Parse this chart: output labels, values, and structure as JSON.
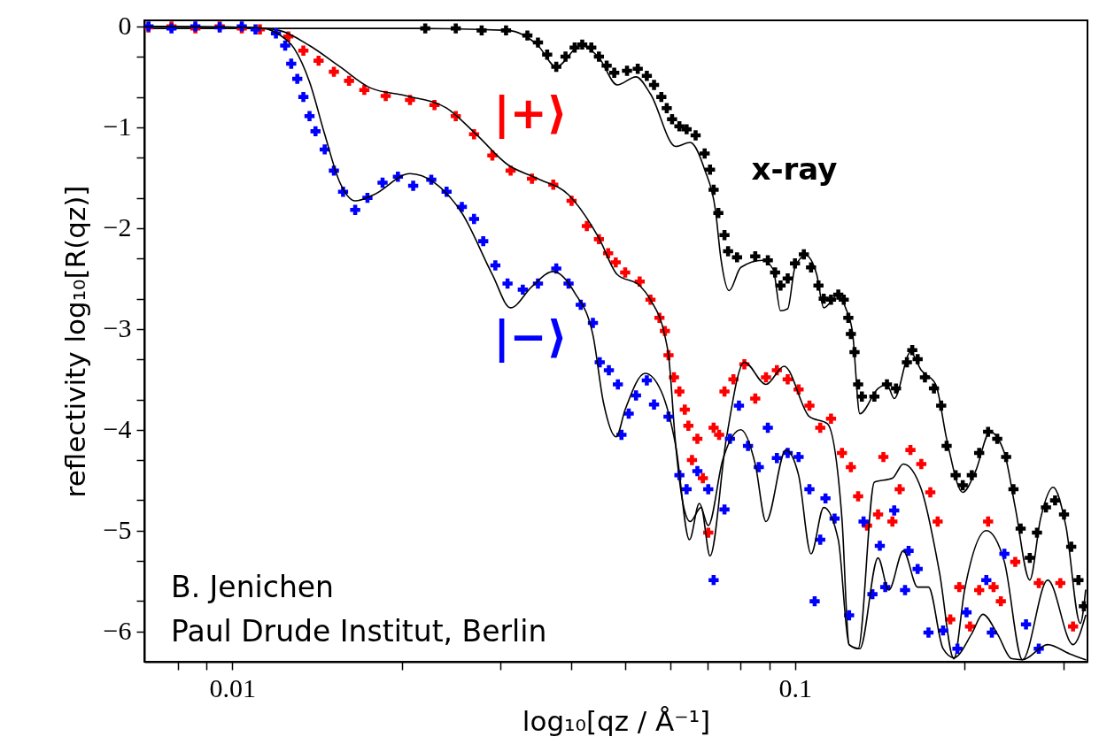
{
  "chart_data": {
    "type": "scatter",
    "xlabel": "log₁₀[qz / Å⁻¹]",
    "ylabel": "reflectivity log₁₀[R(qz)]",
    "log": "x",
    "xlim": [
      0.00698,
      0.331
    ],
    "ylim": [
      -6.3,
      0.06
    ],
    "xticks": [
      {
        "value": 0.008,
        "label": null
      },
      {
        "value": 0.009,
        "label": null
      },
      0.01,
      {
        "value": 0.02,
        "label": null
      },
      {
        "value": 0.03,
        "label": null
      },
      {
        "value": 0.04,
        "label": null
      },
      {
        "value": 0.05,
        "label": null
      },
      {
        "value": 0.06,
        "label": null
      },
      {
        "value": 0.07,
        "label": null
      },
      {
        "value": 0.08,
        "label": null
      },
      {
        "value": 0.09,
        "label": null
      },
      0.1,
      {
        "value": 0.2,
        "label": null
      },
      {
        "value": 0.3,
        "label": null
      }
    ],
    "yticks": [
      0,
      {
        "value": -0.301,
        "label": null
      },
      {
        "value": -0.699,
        "label": null
      },
      -1,
      {
        "value": -1.301,
        "label": null
      },
      {
        "value": -1.699,
        "label": null
      },
      -2,
      {
        "value": -2.301,
        "label": null
      },
      {
        "value": -2.699,
        "label": null
      },
      -3,
      {
        "value": -3.301,
        "label": null
      },
      {
        "value": -3.699,
        "label": null
      },
      -4,
      {
        "value": -4.301,
        "label": null
      },
      {
        "value": -4.699,
        "label": null
      },
      -5,
      {
        "value": -5.301,
        "label": null
      },
      {
        "value": -5.699,
        "label": null
      },
      -6
    ],
    "annotations": [
      "B. Jenichen",
      "Paul Drude Institut, Berlin"
    ],
    "series": [
      {
        "type": "line",
        "color": "#000000",
        "marker": "none",
        "line_style": "solid",
        "x": [
          0.00698,
          0.015,
          0.02123,
          0.03085,
          0.03494,
          0.03766,
          0.04162,
          0.04484,
          0.04832,
          0.05219,
          0.05537,
          0.0614,
          0.06513,
          0.06911,
          0.07222,
          0.07385,
          0.07639,
          0.08012,
          0.08753,
          0.0915,
          0.09426,
          0.09707,
          0.1,
          0.1045,
          0.1093,
          0.1125,
          0.1194,
          0.123,
          0.1266,
          0.1304,
          0.1405,
          0.1457,
          0.1501,
          0.1604,
          0.1677,
          0.1779,
          0.186,
          0.1987,
          0.2094,
          0.2221,
          0.2356,
          0.2463,
          0.2614,
          0.2732,
          0.2876,
          0.3029,
          0.3214,
          0.3285
        ],
        "values": [
          -0.02,
          -0.02,
          -0.02,
          -0.04,
          -0.19,
          -0.4,
          -0.19,
          -0.31,
          -0.58,
          -0.5,
          -0.67,
          -1.19,
          -1.15,
          -1.42,
          -1.82,
          -2.3,
          -2.62,
          -2.39,
          -2.32,
          -2.41,
          -2.82,
          -2.8,
          -2.39,
          -2.27,
          -2.46,
          -2.79,
          -2.66,
          -2.79,
          -3.04,
          -3.84,
          -3.59,
          -3.55,
          -3.69,
          -3.23,
          -3.41,
          -3.55,
          -4.09,
          -4.62,
          -4.41,
          -4.02,
          -4.23,
          -4.77,
          -5.49,
          -4.88,
          -4.57,
          -4.95,
          -5.92,
          -5.59
        ]
      },
      {
        "name": "x-ray",
        "color": "#000000",
        "marker": "cross",
        "x": [
          0.02203,
          0.02496,
          0.02775,
          0.03066,
          0.03346,
          0.03494,
          0.03628,
          0.03766,
          0.03911,
          0.0406,
          0.04188,
          0.04346,
          0.04484,
          0.04628,
          0.04774,
          0.0503,
          0.05256,
          0.05455,
          0.05618,
          0.05788,
          0.05918,
          0.06048,
          0.06232,
          0.06419,
          0.0666,
          0.06911,
          0.07064,
          0.07169,
          0.07309,
          0.07495,
          0.07606,
          0.0789,
          0.085,
          0.0895,
          0.09219,
          0.09426,
          0.09707,
          0.1,
          0.1037,
          0.1068,
          0.1101,
          0.1125,
          0.1159,
          0.1194,
          0.1221,
          0.1244,
          0.1257,
          0.1276,
          0.1295,
          0.1315,
          0.1384,
          0.1457,
          0.1512,
          0.1581,
          0.1616,
          0.1652,
          0.1702,
          0.1766,
          0.1819,
          0.186,
          0.193,
          0.1987,
          0.2062,
          0.2125,
          0.2204,
          0.2288,
          0.2373,
          0.2445,
          0.2518,
          0.2614,
          0.2692,
          0.2793,
          0.2899,
          0.3007,
          0.3097,
          0.319,
          0.3261
        ],
        "values": [
          -0.02,
          -0.02,
          -0.04,
          -0.04,
          -0.09,
          -0.16,
          -0.28,
          -0.4,
          -0.3,
          -0.21,
          -0.18,
          -0.21,
          -0.3,
          -0.39,
          -0.46,
          -0.44,
          -0.42,
          -0.49,
          -0.58,
          -0.7,
          -0.81,
          -0.92,
          -0.99,
          -1.02,
          -1.08,
          -1.26,
          -1.42,
          -1.62,
          -1.85,
          -2.07,
          -2.23,
          -2.29,
          -2.28,
          -2.32,
          -2.44,
          -2.57,
          -2.5,
          -2.35,
          -2.26,
          -2.39,
          -2.57,
          -2.7,
          -2.71,
          -2.66,
          -2.71,
          -2.89,
          -3.05,
          -3.23,
          -3.55,
          -3.67,
          -3.67,
          -3.55,
          -3.59,
          -3.33,
          -3.21,
          -3.3,
          -3.48,
          -3.59,
          -3.76,
          -4.16,
          -4.45,
          -4.55,
          -4.45,
          -4.23,
          -4.02,
          -4.09,
          -4.27,
          -4.59,
          -4.98,
          -5.27,
          -5.02,
          -4.77,
          -4.7,
          -4.84,
          -5.16,
          -5.49,
          -5.75
        ]
      },
      {
        "name": "|+⟩",
        "color": "#ff0000",
        "marker": "cross",
        "x": [
          0.0071,
          0.0078,
          0.0086,
          0.0095,
          0.0104,
          0.0112,
          0.01258,
          0.01338,
          0.01424,
          0.01516,
          0.01613,
          0.01717,
          0.01874,
          0.0207,
          0.02288,
          0.02496,
          0.0269,
          0.02899,
          0.03124,
          0.03409,
          0.0372,
          0.04009,
          0.04267,
          0.04484,
          0.04656,
          0.04803,
          0.04992,
          0.05297,
          0.05537,
          0.05744,
          0.05873,
          0.05961,
          0.06095,
          0.06232,
          0.06372,
          0.06466,
          0.06561,
          0.06708,
          0.0686,
          0.07013,
          0.07169,
          0.07332,
          0.07495,
          0.07774,
          0.0813,
          0.085,
          0.08883,
          0.09287,
          0.09707,
          0.1015,
          0.1061,
          0.1109,
          0.1159,
          0.1212,
          0.1257,
          0.1295,
          0.1343,
          0.1405,
          0.1436,
          0.149,
          0.1535,
          0.1604,
          0.1677,
          0.174,
          0.1793,
          0.1888,
          0.1959,
          0.2047,
          0.2125,
          0.2204,
          0.2254,
          0.2322,
          0.2463,
          0.2712,
          0.2962,
          0.312
        ],
        "values": [
          -0.01,
          0.0,
          -0.02,
          0.0,
          -0.02,
          -0.03,
          -0.1,
          -0.24,
          -0.34,
          -0.45,
          -0.54,
          -0.63,
          -0.69,
          -0.73,
          -0.78,
          -0.89,
          -1.07,
          -1.28,
          -1.43,
          -1.51,
          -1.57,
          -1.73,
          -1.98,
          -2.11,
          -2.25,
          -2.34,
          -2.44,
          -2.53,
          -2.71,
          -2.89,
          -3.02,
          -3.26,
          -3.48,
          -3.62,
          -3.8,
          -3.96,
          -4.3,
          -4.09,
          -4.48,
          -5.02,
          -3.98,
          -4.05,
          -3.62,
          -3.5,
          -3.35,
          -3.69,
          -3.48,
          -3.41,
          -3.5,
          -3.6,
          -3.76,
          -3.98,
          -3.89,
          -4.23,
          -4.37,
          -4.66,
          -4.95,
          -4.84,
          -4.27,
          -4.91,
          -4.59,
          -4.2,
          -4.34,
          -4.62,
          -4.91,
          -5.88,
          -5.56,
          -5.95,
          -5.59,
          -4.91,
          -5.56,
          -5.7,
          -5.31,
          -5.52,
          -5.52,
          -5.95
        ]
      },
      {
        "type": "line",
        "color": "#000000",
        "marker": "none",
        "line_style": "solid",
        "x": [
          0.00698,
          0.01069,
          0.01211,
          0.01372,
          0.01554,
          0.01761,
          0.02044,
          0.02404,
          0.02724,
          0.03085,
          0.03494,
          0.0396,
          0.04484,
          0.04832,
          0.05297,
          0.05537,
          0.05873,
          0.05961,
          0.0614,
          0.06324,
          0.06513,
          0.06809,
          0.07064,
          0.07551,
          0.0813,
          0.08883,
          0.09566,
          0.1061,
          0.1142,
          0.1212,
          0.1248,
          0.1295,
          0.1384,
          0.149,
          0.1558,
          0.1677,
          0.1806,
          0.1916,
          0.2002,
          0.2188,
          0.2356,
          0.2537,
          0.2813,
          0.312,
          0.3285
        ],
        "values": [
          0.0,
          -0.01,
          -0.04,
          -0.19,
          -0.4,
          -0.61,
          -0.69,
          -0.81,
          -1.08,
          -1.37,
          -1.51,
          -1.67,
          -2.1,
          -2.46,
          -2.57,
          -2.71,
          -3.07,
          -3.26,
          -4.16,
          -4.73,
          -4.91,
          -4.77,
          -5.25,
          -4.09,
          -3.33,
          -3.55,
          -3.37,
          -3.87,
          -3.94,
          -4.88,
          -6.13,
          -6.17,
          -4.52,
          -4.48,
          -4.34,
          -4.59,
          -5.41,
          -6.27,
          -5.59,
          -5.0,
          -5.31,
          -6.28,
          -5.49,
          -6.13,
          -5.84
        ]
      },
      {
        "name": "|−⟩",
        "color": "#0000ff",
        "marker": "cross",
        "x": [
          0.0071,
          0.0078,
          0.0086,
          0.0095,
          0.0104,
          0.011,
          0.01196,
          0.01242,
          0.01273,
          0.01305,
          0.01338,
          0.01372,
          0.01406,
          0.0146,
          0.01516,
          0.01574,
          0.01654,
          0.01739,
          0.0185,
          0.0197,
          0.02097,
          0.02258,
          0.02404,
          0.02559,
          0.0269,
          0.02793,
          0.02935,
          0.03085,
          0.03284,
          0.03494,
          0.03766,
          0.0396,
          0.04162,
          0.04375,
          0.04499,
          0.0467,
          0.04845,
          0.04917,
          0.05065,
          0.05219,
          0.05455,
          0.05618,
          0.05961,
          0.06232,
          0.06419,
          0.06708,
          0.07013,
          0.07169,
          0.07495,
          0.07664,
          0.07952,
          0.08252,
          0.08624,
          0.0895,
          0.09287,
          0.09707,
          0.1015,
          0.1061,
          0.1084,
          0.1109,
          0.1133,
          0.1176,
          0.1248,
          0.1324,
          0.1373,
          0.1415,
          0.1447,
          0.1501,
          0.1569,
          0.1592,
          0.1652,
          0.1727,
          0.1833,
          0.1944,
          0.2018,
          0.2188,
          0.2238,
          0.2356,
          0.2574,
          0.2712
        ],
        "values": [
          0.0,
          -0.02,
          0.0,
          -0.01,
          0.0,
          -0.03,
          -0.07,
          -0.19,
          -0.37,
          -0.52,
          -0.7,
          -0.89,
          -1.04,
          -1.22,
          -1.43,
          -1.64,
          -1.82,
          -1.7,
          -1.55,
          -1.49,
          -1.58,
          -1.52,
          -1.64,
          -1.79,
          -1.91,
          -2.13,
          -2.37,
          -2.55,
          -2.61,
          -2.55,
          -2.4,
          -2.55,
          -2.76,
          -2.94,
          -3.33,
          -3.41,
          -3.55,
          -4.05,
          -3.84,
          -3.66,
          -3.51,
          -3.75,
          -3.87,
          -4.45,
          -4.59,
          -4.41,
          -4.59,
          -5.49,
          -4.79,
          -4.09,
          -3.76,
          -4.16,
          -4.37,
          -3.98,
          -4.28,
          -4.23,
          -4.27,
          -4.59,
          -5.7,
          -5.09,
          -4.68,
          -4.88,
          -5.84,
          -4.91,
          -5.63,
          -5.15,
          -5.56,
          -4.8,
          -5.59,
          -5.2,
          -5.38,
          -6.01,
          -5.99,
          -6.17,
          -5.81,
          -5.49,
          -6.01,
          -5.23,
          -5.93,
          -6.17
        ]
      },
      {
        "type": "line",
        "color": "#000000",
        "marker": "none",
        "line_style": "solid",
        "x": [
          0.00698,
          0.01069,
          0.01138,
          0.01211,
          0.01289,
          0.01372,
          0.0146,
          0.01554,
          0.01654,
          0.01783,
          0.0207,
          0.02288,
          0.02559,
          0.02899,
          0.03124,
          0.03409,
          0.0372,
          0.0406,
          0.04375,
          0.04568,
          0.0481,
          0.04992,
          0.05416,
          0.05788,
          0.0614,
          0.06494,
          0.06761,
          0.07013,
          0.0744,
          0.08012,
          0.085,
          0.08883,
          0.09636,
          0.1015,
          0.1068,
          0.1125,
          0.1194,
          0.1248,
          0.1304,
          0.1405,
          0.1468,
          0.1558,
          0.1652,
          0.1727,
          0.1833,
          0.1916,
          0.2062,
          0.2157,
          0.2288,
          0.2427,
          0.2537,
          0.2813,
          0.3074,
          0.3285
        ],
        "values": [
          0.0,
          -0.01,
          -0.02,
          -0.08,
          -0.22,
          -0.55,
          -1.07,
          -1.55,
          -1.73,
          -1.67,
          -1.46,
          -1.55,
          -1.85,
          -2.46,
          -2.79,
          -2.58,
          -2.43,
          -2.64,
          -3.06,
          -3.73,
          -4.07,
          -3.8,
          -3.44,
          -3.62,
          -4.16,
          -5.09,
          -4.73,
          -4.95,
          -4.3,
          -4.0,
          -4.34,
          -4.91,
          -4.2,
          -4.45,
          -5.23,
          -4.77,
          -5.09,
          -6.13,
          -6.17,
          -5.27,
          -5.59,
          -5.2,
          -5.56,
          -5.56,
          -6.17,
          -6.26,
          -6.02,
          -5.83,
          -6.02,
          -6.27,
          -6.28,
          -6.13,
          -6.22,
          -6.28
        ]
      }
    ]
  }
}
